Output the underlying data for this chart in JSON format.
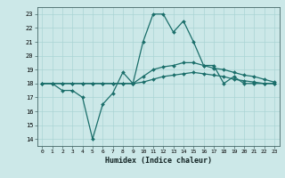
{
  "xlabel": "Humidex (Indice chaleur)",
  "ylabel": "",
  "xlim": [
    -0.5,
    23.5
  ],
  "ylim": [
    13.5,
    23.5
  ],
  "xticks": [
    0,
    1,
    2,
    3,
    4,
    5,
    6,
    7,
    8,
    9,
    10,
    11,
    12,
    13,
    14,
    15,
    16,
    17,
    18,
    19,
    20,
    21,
    22,
    23
  ],
  "yticks": [
    14,
    15,
    16,
    17,
    18,
    19,
    20,
    21,
    22,
    23
  ],
  "background_color": "#cce8e8",
  "grid_color": "#aad4d4",
  "line_color": "#1a6e6a",
  "line1_x": [
    0,
    1,
    2,
    3,
    4,
    5,
    6,
    7,
    8,
    9,
    10,
    11,
    12,
    13,
    14,
    15,
    16,
    17,
    18,
    19,
    20,
    21,
    22,
    23
  ],
  "line1_y": [
    18,
    18,
    17.5,
    17.5,
    17,
    14,
    16.5,
    17.3,
    18.8,
    18,
    21,
    23,
    23,
    21.7,
    22.5,
    21,
    19.3,
    19.3,
    18,
    18.5,
    18,
    18,
    18,
    18
  ],
  "line2_x": [
    0,
    1,
    2,
    3,
    4,
    5,
    6,
    7,
    8,
    9,
    10,
    11,
    12,
    13,
    14,
    15,
    16,
    17,
    18,
    19,
    20,
    21,
    22,
    23
  ],
  "line2_y": [
    18,
    18,
    18,
    18,
    18,
    18,
    18,
    18,
    18,
    18,
    18.5,
    19,
    19.2,
    19.3,
    19.5,
    19.5,
    19.3,
    19.1,
    19.0,
    18.8,
    18.6,
    18.5,
    18.3,
    18.1
  ],
  "line3_x": [
    0,
    1,
    2,
    3,
    4,
    5,
    6,
    7,
    8,
    9,
    10,
    11,
    12,
    13,
    14,
    15,
    16,
    17,
    18,
    19,
    20,
    21,
    22,
    23
  ],
  "line3_y": [
    18,
    18,
    18,
    18,
    18,
    18,
    18,
    18,
    18,
    18,
    18.1,
    18.3,
    18.5,
    18.6,
    18.7,
    18.8,
    18.7,
    18.6,
    18.5,
    18.3,
    18.2,
    18.1,
    18.0,
    18.0
  ]
}
